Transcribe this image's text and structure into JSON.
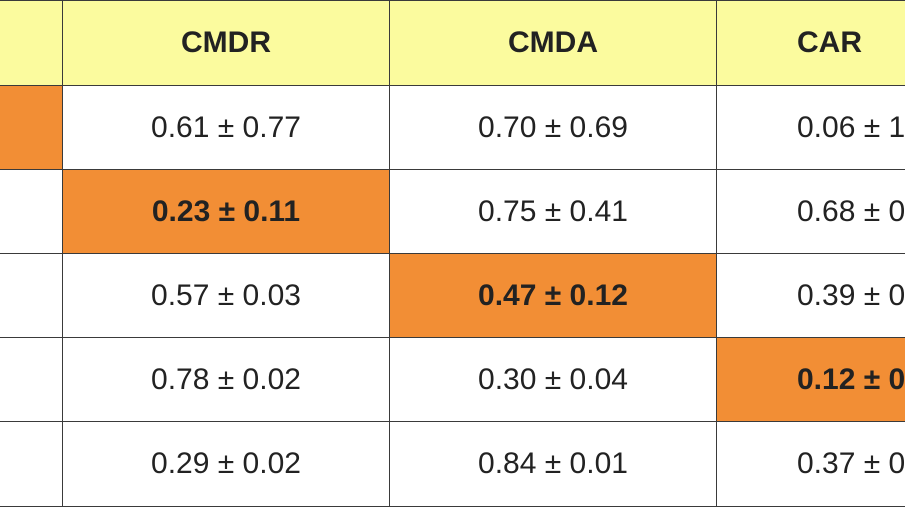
{
  "table": {
    "header": [
      "CMDR",
      "CMDA",
      "CAR"
    ],
    "rows": [
      [
        "0.61 ± 0.77",
        "0.70 ± 0.69",
        "0.06 ± 1"
      ],
      [
        "0.23 ± 0.11",
        "0.75 ± 0.41",
        "0.68 ± 0"
      ],
      [
        "0.57 ± 0.03",
        "0.47 ± 0.12",
        "0.39 ± 0"
      ],
      [
        "0.78 ± 0.02",
        "0.30 ± 0.04",
        "0.12 ± 0"
      ],
      [
        "0.29 ± 0.02",
        "0.84 ± 0.01",
        "0.37 ± 0"
      ]
    ]
  }
}
